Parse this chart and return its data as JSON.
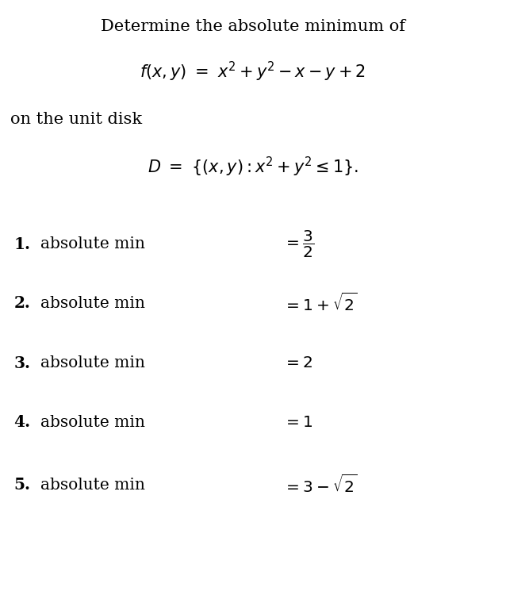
{
  "background_color": "#ffffff",
  "title_line": "Determine the absolute minimum of",
  "title_fontsize": 15,
  "formula_f": "$f(x, y) \\ = \\ x^2 + y^2 - x - y + 2$",
  "formula_f_fontsize": 15,
  "text_on": "on the unit disk",
  "text_on_fontsize": 15,
  "formula_D": "$D \\ = \\ \\{(x, y) : x^2 + y^2 \\leq 1\\}.$",
  "formula_D_fontsize": 15,
  "options": [
    {
      "num": "1.",
      "text": "absolute min",
      "eq": "$= \\dfrac{3}{2}$"
    },
    {
      "num": "2.",
      "text": "absolute min",
      "eq": "$= 1 + \\sqrt{2}$"
    },
    {
      "num": "3.",
      "text": "absolute min",
      "eq": "$= 2$"
    },
    {
      "num": "4.",
      "text": "absolute min",
      "eq": "$= 1$"
    },
    {
      "num": "5.",
      "text": "absolute min",
      "eq": "$= 3 - \\sqrt{2}$"
    }
  ],
  "options_fontsize": 14.5,
  "text_color": "#000000"
}
